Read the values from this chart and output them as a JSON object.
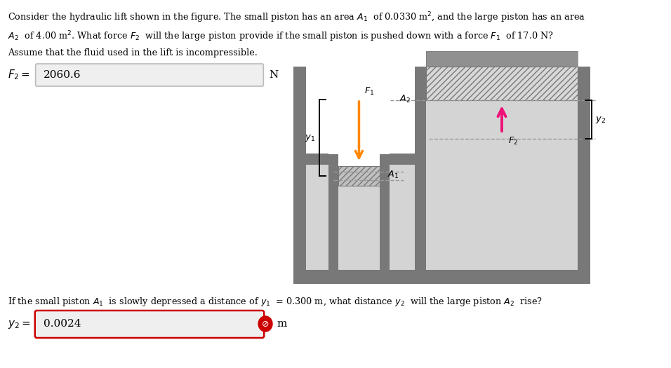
{
  "f2_value": "2060.6",
  "f2_unit": "N",
  "y2_value": "0.0024",
  "y2_unit": "m",
  "bg_color": "#ffffff",
  "box_bg_f2": "#efefef",
  "box_border_f2": "#bbbbbb",
  "box_bg_y2": "#efefef",
  "box_border_y2": "#cc0000",
  "arrow_f1_color": "#ff8800",
  "arrow_f2_color": "#ee1177",
  "wall_dark": "#787878",
  "wall_inner": "#909090",
  "fluid_light": "#d4d4d4",
  "piston_fill": "#d8d8d8",
  "hatch_fill": "#c0c0c0",
  "dashed_color": "#999999",
  "reset_btn_color": "#cc0000",
  "title_line1": "Consider the hydraulic lift shown in the figure. The small piston has an area $A_1$  of 0.0330 m$^2$, and the large piston has an area",
  "title_line2": "$A_2$  of 4.00 m$^2$. What force $F_2$  will the large piston provide if the small piston is pushed down with a force $F_1$  of 17.0 N?",
  "title_line3": "Assume that the fluid used in the lift is incompressible.",
  "question": "If the small piston $A_1$  is slowly depressed a distance of $y_1$  = 0.300 m, what distance $y_2$  will the large piston $A_2$  rise?"
}
